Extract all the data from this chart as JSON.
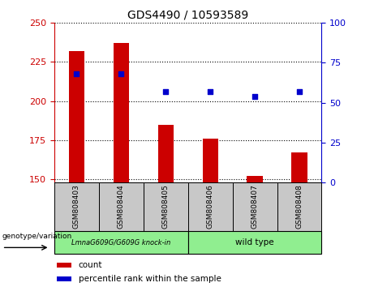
{
  "title": "GDS4490 / 10593589",
  "samples": [
    "GSM808403",
    "GSM808404",
    "GSM808405",
    "GSM808406",
    "GSM808407",
    "GSM808408"
  ],
  "counts": [
    232,
    237,
    185,
    176,
    152,
    167
  ],
  "percentile_ranks": [
    68,
    68,
    57,
    57,
    54,
    57
  ],
  "ylim_left": [
    148,
    250
  ],
  "ylim_right": [
    0,
    100
  ],
  "yticks_left": [
    150,
    175,
    200,
    225,
    250
  ],
  "yticks_right": [
    0,
    25,
    50,
    75,
    100
  ],
  "group1_label": "LmnaG609G/G609G knock-in",
  "group2_label": "wild type",
  "group_color": "#90EE90",
  "sample_box_color": "#C8C8C8",
  "bar_color": "#CC0000",
  "dot_color": "#0000CC",
  "left_axis_color": "#CC0000",
  "right_axis_color": "#0000CC",
  "group_label": "genotype/variation",
  "legend_count": "count",
  "legend_percentile": "percentile rank within the sample",
  "bar_width": 0.35
}
